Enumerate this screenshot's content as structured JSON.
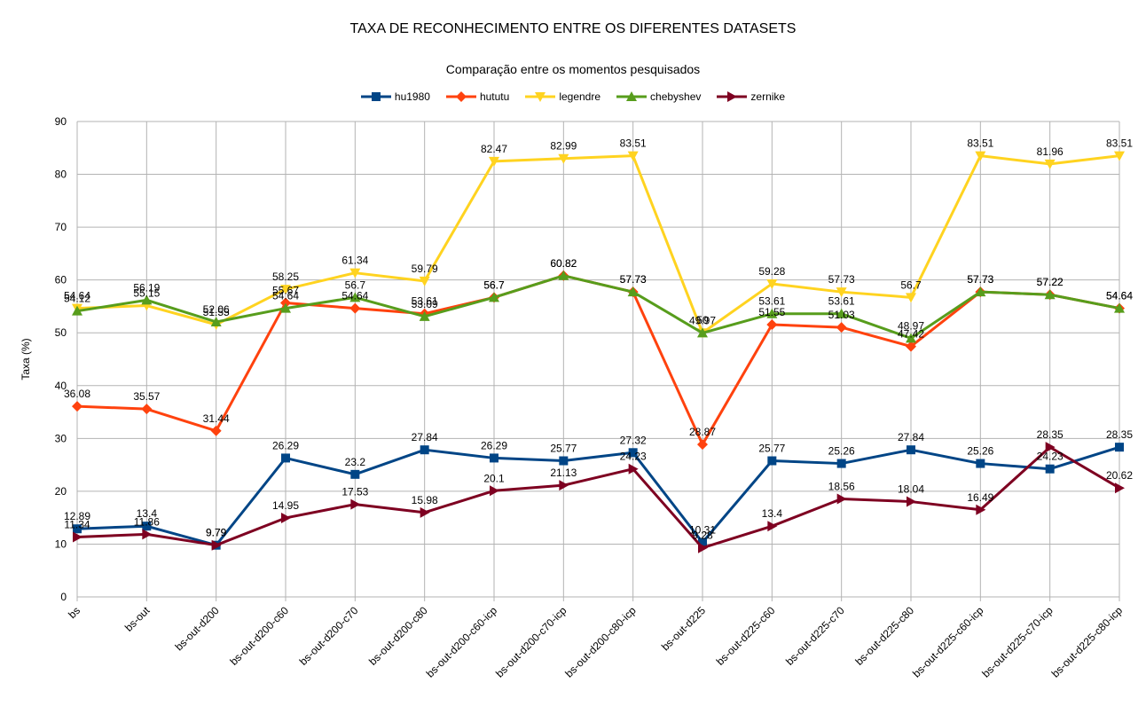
{
  "chart_data": {
    "type": "line",
    "title": "TAXA DE RECONHECIMENTO ENTRE OS DIFERENTES DATASETS",
    "subtitle": "Comparação entre os momentos pesquisados",
    "xlabel": "",
    "ylabel": "Taxa (%)",
    "ylim": [
      0,
      90
    ],
    "yticks": [
      "0",
      "10",
      "20",
      "30",
      "40",
      "50",
      "60",
      "70",
      "80",
      "90"
    ],
    "grid": true,
    "legend_position": "top",
    "categories": [
      "bs",
      "bs-out",
      "bs-out-d200",
      "bs-out-d200-c60",
      "bs-out-d200-c70",
      "bs-out-d200-c80",
      "bs-out-d200-c60-icp",
      "bs-out-d200-c70-icp",
      "bs-out-d200-c80-icp",
      "bs-out-d225",
      "bs-out-d225-c60",
      "bs-out-d225-c70",
      "bs-out-d225-c80",
      "bs-out-d225-c60-icp",
      "bs-out-d225-c70-icp",
      "bs-out-d225-c80-icp"
    ],
    "series": [
      {
        "name": "hu1980",
        "color": "#004586",
        "marker": "square",
        "values": [
          12.89,
          13.4,
          9.79,
          26.29,
          23.2,
          27.84,
          26.29,
          25.77,
          27.32,
          10.31,
          25.77,
          25.26,
          27.84,
          25.26,
          24.23,
          28.35
        ],
        "labels": [
          "12.89",
          "13.4",
          "9.79",
          "26.29",
          "23.2",
          "27.84",
          "26.29",
          "25.77",
          "27.32",
          "10.31",
          "25.77",
          "25.26",
          "27.84",
          "25.26",
          "24.23",
          "28.35"
        ]
      },
      {
        "name": "hututu",
        "color": "#ff420e",
        "marker": "diamond",
        "values": [
          36.08,
          35.57,
          31.44,
          55.67,
          54.64,
          53.61,
          56.7,
          60.82,
          57.73,
          28.87,
          51.55,
          51.03,
          47.42,
          57.73,
          57.22,
          54.64
        ],
        "labels": [
          "36.08",
          "35.57",
          "31.44",
          "55.67",
          "54.64",
          "53.61",
          "56.7",
          "60.82",
          "57.73",
          "28.87",
          "51.55",
          "51.03",
          "47.42",
          "57.73",
          "57.22",
          "54.64"
        ]
      },
      {
        "name": "legendre",
        "color": "#ffd320",
        "marker": "triangle-down",
        "values": [
          54.64,
          55.15,
          51.55,
          58.25,
          61.34,
          59.79,
          82.47,
          82.99,
          83.51,
          50,
          59.28,
          57.73,
          56.7,
          83.51,
          81.96,
          83.51
        ],
        "labels": [
          "54.64",
          "55.15",
          "51.55",
          "58.25",
          "61.34",
          "59.79",
          "82.47",
          "82.99",
          "83.51",
          "50",
          "59.28",
          "57.73",
          "56.7",
          "83.51",
          "81.96",
          "83.51"
        ]
      },
      {
        "name": "chebyshev",
        "color": "#579d1c",
        "marker": "triangle-up",
        "values": [
          54.12,
          56.19,
          52.06,
          54.64,
          56.7,
          53.09,
          56.7,
          60.82,
          57.73,
          49.97,
          53.61,
          53.61,
          48.97,
          57.73,
          57.22,
          54.64
        ],
        "labels": [
          "54.12",
          "56.19",
          "52.06",
          "54.64",
          "56.7",
          "53.09",
          "56.7",
          "60.82",
          "57.73",
          "49.97",
          "53.61",
          "53.61",
          "48.97",
          "57.73",
          "57.22",
          "54.64"
        ]
      },
      {
        "name": "zernike",
        "color": "#7e0021",
        "marker": "triangle-right",
        "values": [
          11.34,
          11.86,
          9.79,
          14.95,
          17.53,
          15.98,
          20.1,
          21.13,
          24.23,
          9.28,
          13.4,
          18.56,
          18.04,
          16.49,
          28.35,
          20.62
        ],
        "labels": [
          "11.34",
          "11.86",
          "9.79",
          "14.95",
          "17.53",
          "15.98",
          "20.1",
          "21.13",
          "24.23",
          "9.28",
          "13.4",
          "18.56",
          "18.04",
          "16.49",
          "28.35",
          "20.62"
        ]
      }
    ]
  }
}
